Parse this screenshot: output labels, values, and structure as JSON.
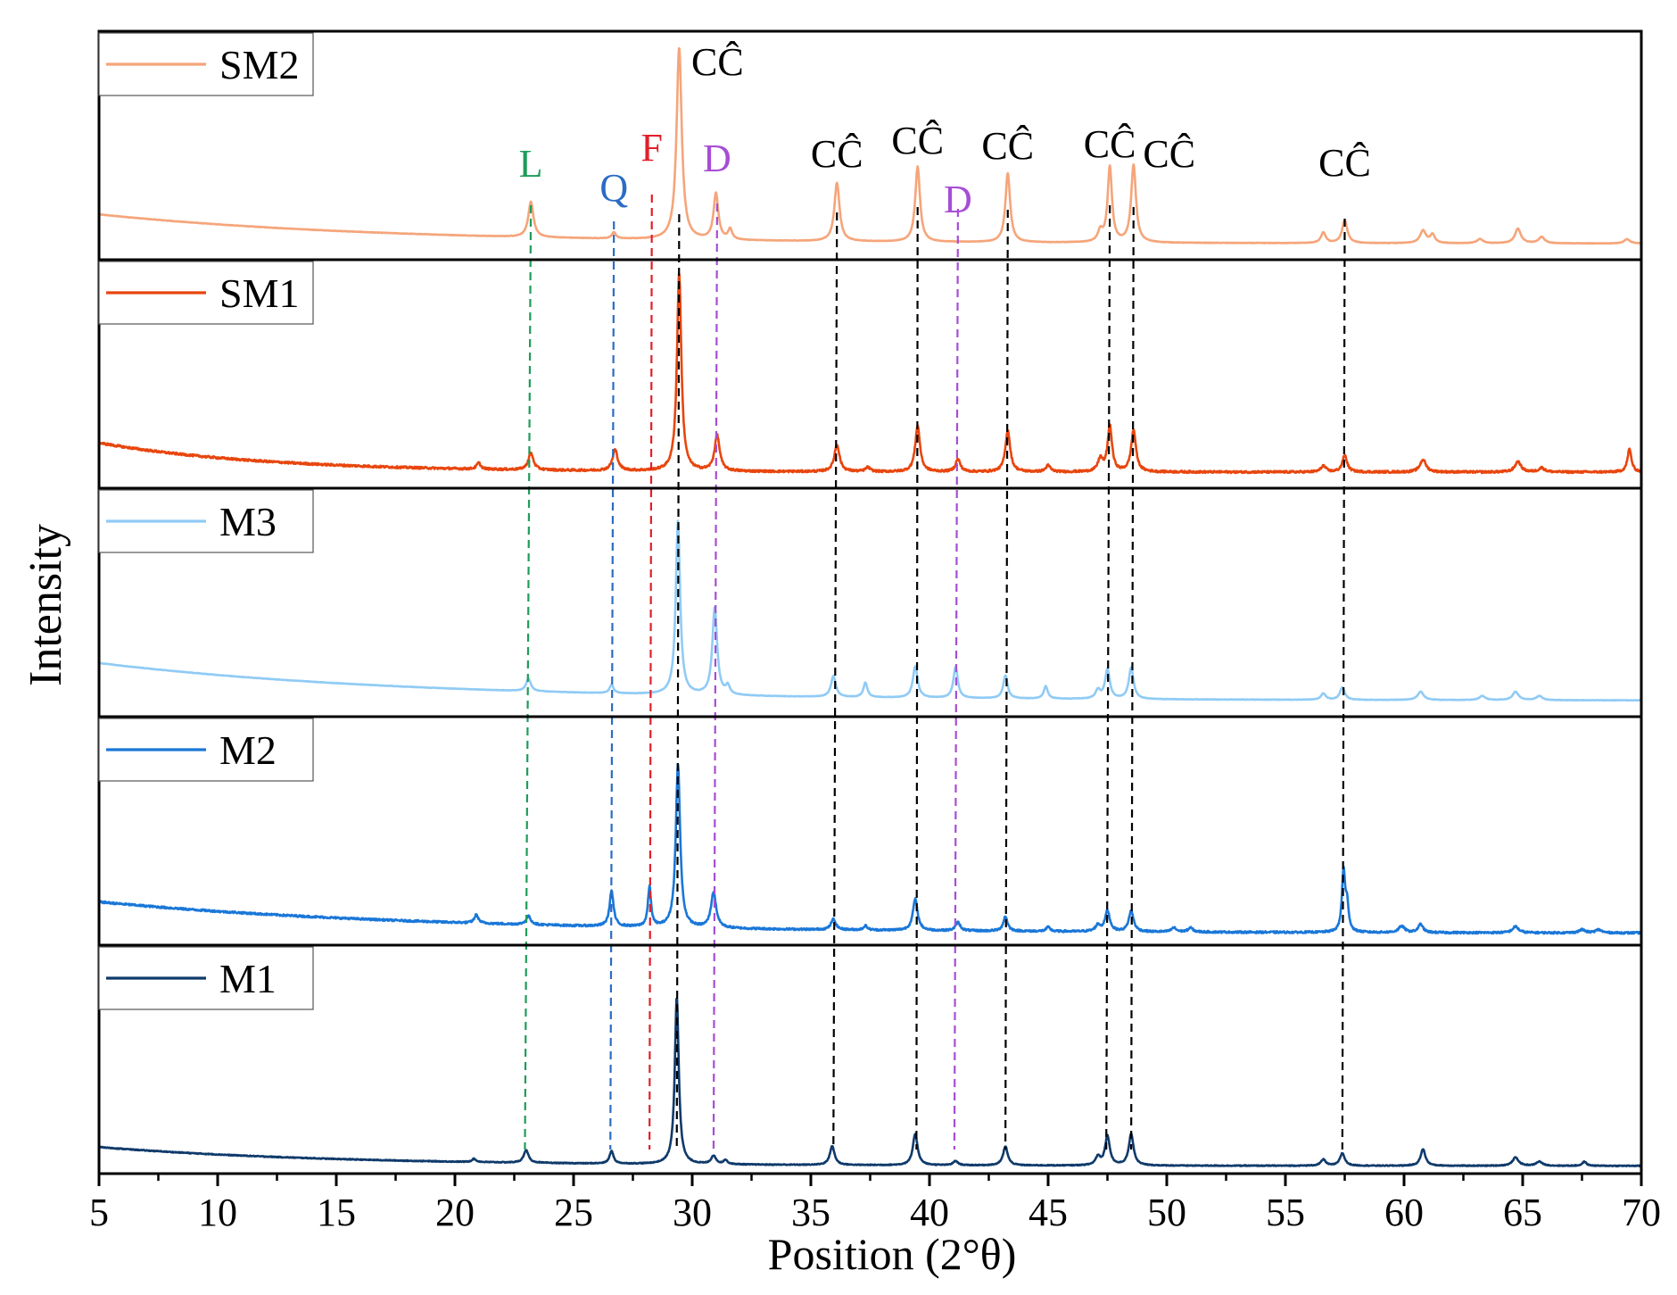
{
  "chart_data": {
    "type": "line",
    "title": "",
    "xlabel": "Position (2°θ)",
    "ylabel": "Intensity",
    "xlim": [
      5,
      70
    ],
    "x_ticks": [
      5,
      10,
      15,
      20,
      25,
      30,
      35,
      40,
      45,
      50,
      55,
      60,
      65,
      70
    ],
    "x_tick_labels": [
      "5",
      "10",
      "15",
      "20",
      "25",
      "30",
      "35",
      "40",
      "45",
      "50",
      "55",
      "60",
      "65",
      "70"
    ],
    "ylim": [
      0,
      100
    ],
    "panels": [
      {
        "name": "SM2",
        "color": "#F5A57A",
        "baseline": 6,
        "curve_start": 14,
        "drop_x": 12,
        "noise": 0.2,
        "peaks": [
          [
            23.2,
            17,
            0.13
          ],
          [
            26.7,
            3,
            0.1
          ],
          [
            29.45,
            92,
            0.13
          ],
          [
            31.0,
            22,
            0.12
          ],
          [
            31.6,
            5,
            0.1
          ],
          [
            36.1,
            28,
            0.13
          ],
          [
            39.5,
            36,
            0.12
          ],
          [
            43.3,
            33,
            0.12
          ],
          [
            47.2,
            5,
            0.12
          ],
          [
            47.6,
            36,
            0.11
          ],
          [
            48.6,
            37,
            0.12
          ],
          [
            56.6,
            5,
            0.12
          ],
          [
            57.5,
            11,
            0.13
          ],
          [
            60.8,
            6,
            0.15
          ],
          [
            61.2,
            4,
            0.12
          ],
          [
            63.2,
            2,
            0.15
          ],
          [
            64.8,
            7,
            0.15
          ],
          [
            65.8,
            3,
            0.15
          ],
          [
            69.4,
            2,
            0.15
          ]
        ]
      },
      {
        "name": "SM1",
        "color": "#E8460E",
        "baseline": 6,
        "curve_start": 14,
        "drop_x": 7,
        "noise": 1.0,
        "peaks": [
          [
            21.0,
            3,
            0.1
          ],
          [
            23.2,
            8,
            0.13
          ],
          [
            26.75,
            10,
            0.13
          ],
          [
            29.45,
            95,
            0.11
          ],
          [
            31.05,
            17,
            0.13
          ],
          [
            36.1,
            13,
            0.13
          ],
          [
            37.4,
            2,
            0.12
          ],
          [
            39.5,
            22,
            0.12
          ],
          [
            41.2,
            6,
            0.12
          ],
          [
            43.3,
            20,
            0.12
          ],
          [
            45.0,
            3,
            0.12
          ],
          [
            47.2,
            6,
            0.12
          ],
          [
            47.6,
            22,
            0.11
          ],
          [
            48.6,
            20,
            0.12
          ],
          [
            56.6,
            3,
            0.12
          ],
          [
            57.5,
            8,
            0.12
          ],
          [
            60.8,
            6,
            0.15
          ],
          [
            64.8,
            5,
            0.15
          ],
          [
            65.8,
            2,
            0.15
          ],
          [
            69.5,
            11,
            0.1
          ]
        ]
      },
      {
        "name": "M3",
        "color": "#90CBF5",
        "baseline": 6,
        "curve_start": 18,
        "drop_x": 13,
        "noise": 0.2,
        "peaks": [
          [
            23.1,
            6,
            0.12
          ],
          [
            26.6,
            4,
            0.1
          ],
          [
            29.4,
            83,
            0.11
          ],
          [
            30.95,
            42,
            0.12
          ],
          [
            31.5,
            4,
            0.1
          ],
          [
            35.95,
            10,
            0.12
          ],
          [
            37.3,
            7,
            0.1
          ],
          [
            39.4,
            15,
            0.12
          ],
          [
            41.1,
            15,
            0.11
          ],
          [
            43.2,
            11,
            0.11
          ],
          [
            44.9,
            6,
            0.1
          ],
          [
            47.1,
            4,
            0.12
          ],
          [
            47.5,
            14,
            0.12
          ],
          [
            48.5,
            15,
            0.12
          ],
          [
            56.6,
            3,
            0.12
          ],
          [
            57.4,
            6,
            0.12
          ],
          [
            60.7,
            4,
            0.15
          ],
          [
            63.3,
            2,
            0.15
          ],
          [
            64.7,
            4,
            0.15
          ],
          [
            65.7,
            2,
            0.15
          ]
        ]
      },
      {
        "name": "M2",
        "color": "#1A77D8",
        "baseline": 4,
        "curve_start": 15,
        "drop_x": 14,
        "noise": 0.9,
        "peaks": [
          [
            20.9,
            4,
            0.1
          ],
          [
            23.1,
            4,
            0.12
          ],
          [
            26.6,
            17,
            0.1
          ],
          [
            28.2,
            19,
            0.08
          ],
          [
            29.4,
            78,
            0.11
          ],
          [
            30.9,
            17,
            0.13
          ],
          [
            35.95,
            5,
            0.12
          ],
          [
            37.3,
            2,
            0.1
          ],
          [
            39.4,
            15,
            0.12
          ],
          [
            41.2,
            4,
            0.12
          ],
          [
            43.2,
            7,
            0.11
          ],
          [
            45.0,
            2,
            0.1
          ],
          [
            47.1,
            3,
            0.12
          ],
          [
            47.5,
            10,
            0.12
          ],
          [
            48.5,
            10,
            0.12
          ],
          [
            50.3,
            2,
            0.12
          ],
          [
            51.0,
            2,
            0.12
          ],
          [
            57.45,
            29,
            0.08
          ],
          [
            57.6,
            12,
            0.08
          ],
          [
            59.9,
            3,
            0.15
          ],
          [
            60.7,
            4,
            0.12
          ],
          [
            64.7,
            3,
            0.15
          ],
          [
            67.5,
            1.5,
            0.15
          ],
          [
            68.2,
            1.5,
            0.15
          ]
        ]
      },
      {
        "name": "M1",
        "color": "#0F3A6B",
        "baseline": 2,
        "curve_start": 9,
        "drop_x": 10,
        "noise": 0.4,
        "peaks": [
          [
            20.8,
            1.5,
            0.1
          ],
          [
            23.0,
            6,
            0.12
          ],
          [
            26.6,
            6,
            0.1
          ],
          [
            29.35,
            80,
            0.1
          ],
          [
            30.9,
            4,
            0.12
          ],
          [
            31.4,
            2,
            0.1
          ],
          [
            35.9,
            9,
            0.12
          ],
          [
            39.4,
            15,
            0.12
          ],
          [
            41.1,
            2,
            0.12
          ],
          [
            43.2,
            9,
            0.12
          ],
          [
            47.1,
            4,
            0.12
          ],
          [
            47.5,
            14,
            0.12
          ],
          [
            48.5,
            15,
            0.12
          ],
          [
            56.6,
            3,
            0.12
          ],
          [
            57.4,
            6,
            0.12
          ],
          [
            60.8,
            8,
            0.12
          ],
          [
            64.7,
            4,
            0.15
          ],
          [
            65.7,
            2,
            0.15
          ],
          [
            67.6,
            2,
            0.1
          ]
        ]
      }
    ],
    "reference_lines": [
      {
        "label": "L",
        "x_top": 23.2,
        "x_bottom": 22.95,
        "color": "#1E9C5A"
      },
      {
        "label": "Q",
        "x_top": 26.7,
        "x_bottom": 26.55,
        "color": "#2B6CC4"
      },
      {
        "label": "F",
        "x_top": 28.3,
        "x_bottom": 28.2,
        "color": "#E0202A"
      },
      {
        "label": "CĈ",
        "x_top": 29.45,
        "x_bottom": 29.35,
        "color": "#000000"
      },
      {
        "label": "D",
        "x_top": 31.05,
        "x_bottom": 30.9,
        "color": "#A64DD6"
      },
      {
        "label": "CĈ",
        "x_top": 36.1,
        "x_bottom": 35.95,
        "color": "#000000"
      },
      {
        "label": "CĈ",
        "x_top": 39.5,
        "x_bottom": 39.45,
        "color": "#000000"
      },
      {
        "label": "D",
        "x_top": 41.2,
        "x_bottom": 41.05,
        "color": "#A64DD6"
      },
      {
        "label": "CĈ",
        "x_top": 43.3,
        "x_bottom": 43.2,
        "color": "#000000"
      },
      {
        "label": "CĈ",
        "x_top": 47.6,
        "x_bottom": 47.45,
        "color": "#000000"
      },
      {
        "label": "CĈ",
        "x_top": 48.6,
        "x_bottom": 48.5,
        "color": "#000000"
      },
      {
        "label": "CĈ",
        "x_top": 57.5,
        "x_bottom": 57.4,
        "color": "#000000"
      }
    ]
  }
}
